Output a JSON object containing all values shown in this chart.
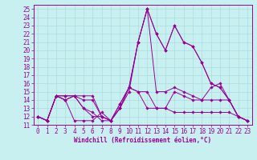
{
  "title": "",
  "xlabel": "Windchill (Refroidissement éolien,°C)",
  "background_color": "#c8f0f0",
  "line_color": "#990099",
  "grid_color": "#aadddd",
  "xlim": [
    -0.5,
    23.5
  ],
  "ylim": [
    11,
    25.5
  ],
  "xticks": [
    0,
    1,
    2,
    3,
    4,
    5,
    6,
    7,
    8,
    9,
    10,
    11,
    12,
    13,
    14,
    15,
    16,
    17,
    18,
    19,
    20,
    21,
    22,
    23
  ],
  "yticks": [
    11,
    12,
    13,
    14,
    15,
    16,
    17,
    18,
    19,
    20,
    21,
    22,
    23,
    24,
    25
  ],
  "curves": [
    [
      12,
      11.5,
      14.5,
      14,
      11.5,
      11.5,
      11.5,
      12.5,
      11.5,
      13,
      15,
      21,
      25,
      22,
      20,
      23,
      21,
      20.5,
      18.5,
      16,
      15.5,
      14,
      12,
      11.5
    ],
    [
      12,
      11.5,
      14.5,
      14,
      14.5,
      13,
      12,
      12,
      11.5,
      13.5,
      15.5,
      21,
      25,
      22,
      20,
      23,
      21,
      20.5,
      18.5,
      16,
      15.5,
      14,
      12,
      11.5
    ],
    [
      12,
      11.5,
      14.5,
      14.5,
      14.5,
      13,
      12.5,
      11.5,
      11.5,
      13.5,
      15.5,
      21,
      25,
      15,
      15,
      15.5,
      15,
      14.5,
      14,
      14,
      14,
      14,
      12,
      11.5
    ],
    [
      12,
      11.5,
      14.5,
      14,
      14.5,
      14.5,
      14.5,
      12,
      11.5,
      13,
      15.5,
      15,
      15,
      13,
      13,
      15,
      14.5,
      14,
      14,
      15.5,
      16,
      14,
      12,
      11.5
    ],
    [
      12,
      11.5,
      14.5,
      14.5,
      14.5,
      14,
      14,
      12,
      11.5,
      13,
      15.5,
      15,
      13,
      13,
      13,
      12.5,
      12.5,
      12.5,
      12.5,
      12.5,
      12.5,
      12.5,
      12,
      11.5
    ]
  ],
  "tick_fontsize": 5.5,
  "xlabel_fontsize": 5.5
}
